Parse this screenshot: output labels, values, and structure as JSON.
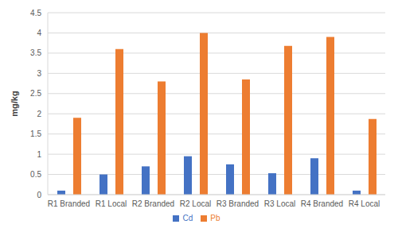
{
  "chart_data": {
    "type": "bar",
    "ylabel": "mg/kg",
    "categories": [
      "R1 Branded",
      "R1 Local",
      "R2 Branded",
      "R2 Local",
      "R3 Branded",
      "R3 Local",
      "R4 Branded",
      "R4 Local"
    ],
    "series": [
      {
        "name": "Cd",
        "color": "#4472c4",
        "values": [
          0.1,
          0.5,
          0.7,
          0.95,
          0.75,
          0.53,
          0.9,
          0.1
        ]
      },
      {
        "name": "Pb",
        "color": "#ed7d31",
        "values": [
          1.9,
          3.6,
          2.8,
          4.0,
          2.85,
          3.68,
          3.9,
          1.87
        ]
      }
    ],
    "ylim": [
      0,
      4.5
    ],
    "yticks": [
      0,
      0.5,
      1,
      1.5,
      2,
      2.5,
      3,
      3.5,
      4,
      4.5
    ],
    "grid": true,
    "legend": "bottom"
  }
}
